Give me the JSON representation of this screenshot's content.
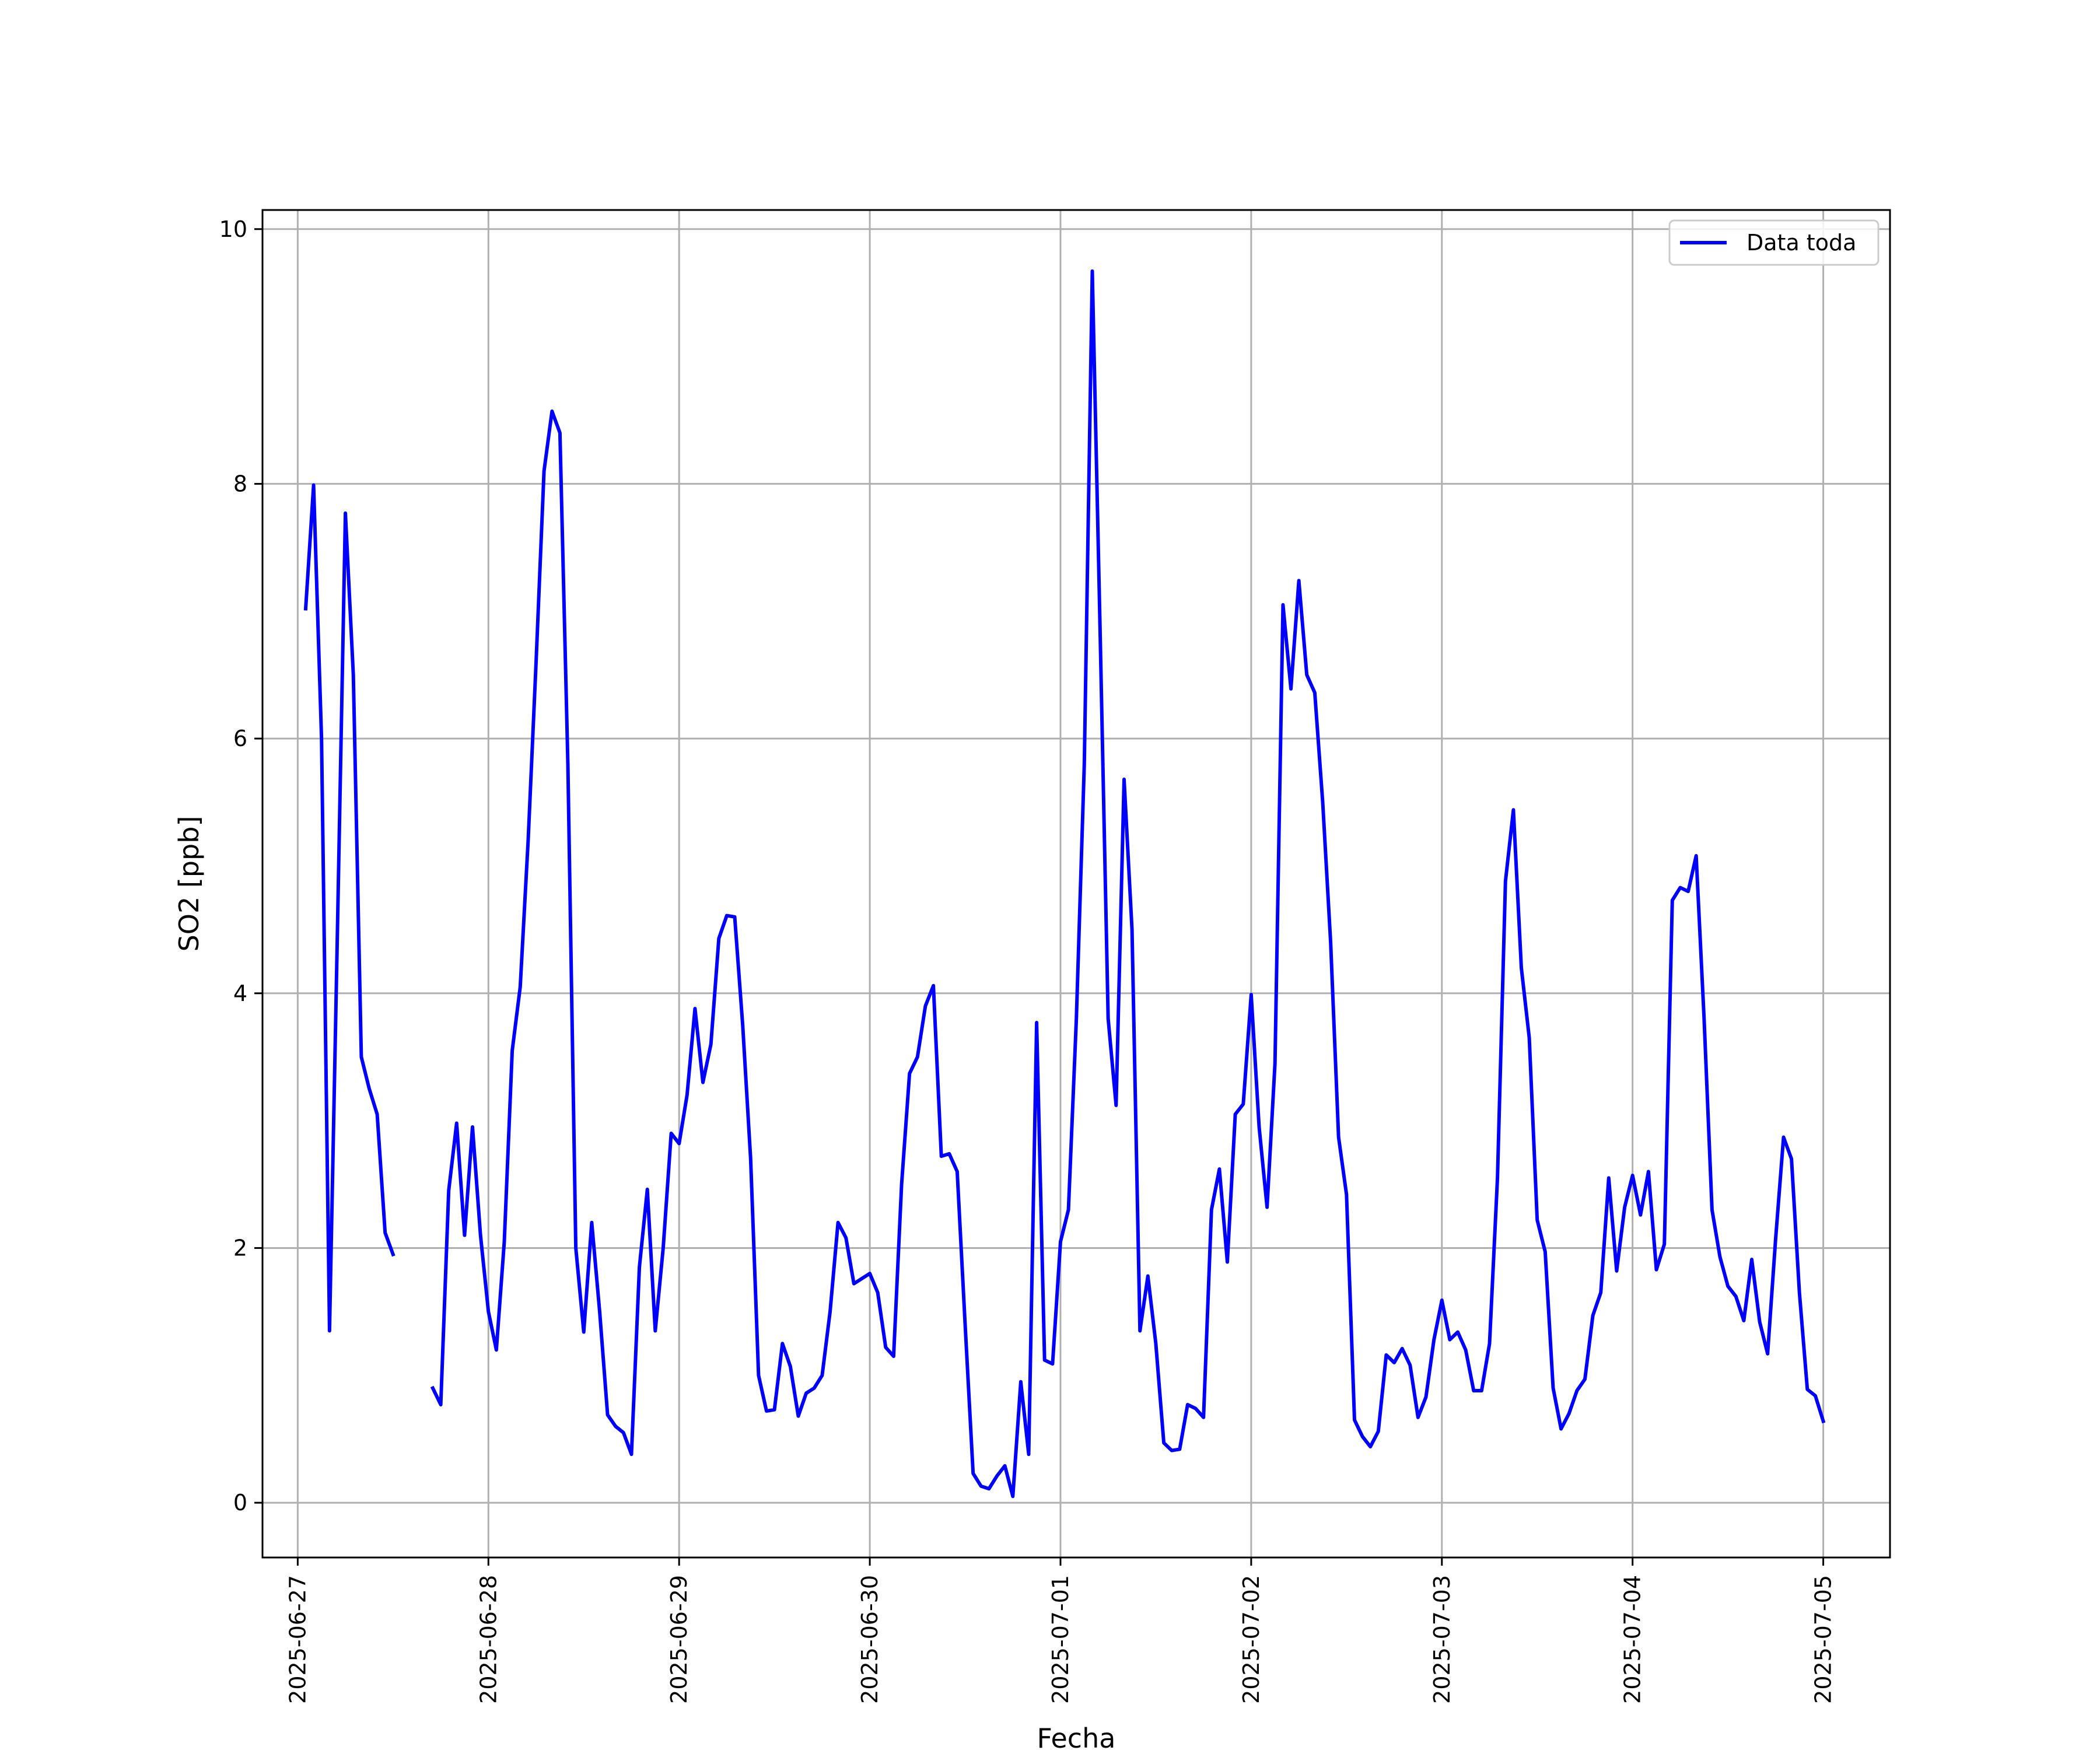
{
  "chart_data": {
    "type": "line",
    "xlabel": "Fecha",
    "ylabel": "SO2 [ppb]",
    "x_ticks": [
      "2025-06-27",
      "2025-06-28",
      "2025-06-29",
      "2025-06-30",
      "2025-07-01",
      "2025-07-02",
      "2025-07-03",
      "2025-07-04",
      "2025-07-05"
    ],
    "y_ticks": [
      0,
      2,
      4,
      6,
      8,
      10
    ],
    "xlim": [
      "2025-06-26T19:34",
      "2025-07-05T08:24"
    ],
    "ylim": [
      -0.43,
      10.15
    ],
    "grid": true,
    "legend": "upper-right",
    "colors": {
      "series": "#0000ff",
      "grid": "#b0b0b0"
    },
    "series": [
      {
        "name": "Data toda",
        "segments": [
          [
            [
              "2025-06-27T01:00",
              7.02
            ],
            [
              "2025-06-27T02:00",
              7.99
            ],
            [
              "2025-06-27T03:00",
              6.0
            ],
            [
              "2025-06-27T04:00",
              1.35
            ],
            [
              "2025-06-27T05:00",
              4.5
            ],
            [
              "2025-06-27T06:00",
              7.77
            ],
            [
              "2025-06-27T07:00",
              6.5
            ],
            [
              "2025-06-27T08:00",
              3.5
            ],
            [
              "2025-06-27T09:00",
              3.25
            ],
            [
              "2025-06-27T10:00",
              3.05
            ],
            [
              "2025-06-27T11:00",
              2.12
            ],
            [
              "2025-06-27T12:00",
              1.95
            ]
          ],
          [
            [
              "2025-06-27T17:00",
              0.9
            ],
            [
              "2025-06-27T18:00",
              0.77
            ],
            [
              "2025-06-27T19:00",
              2.45
            ],
            [
              "2025-06-27T20:00",
              2.98
            ],
            [
              "2025-06-27T21:00",
              2.1
            ],
            [
              "2025-06-27T22:00",
              2.95
            ],
            [
              "2025-06-27T23:00",
              2.1
            ],
            [
              "2025-06-28T00:00",
              1.5
            ],
            [
              "2025-06-28T01:00",
              1.2
            ],
            [
              "2025-06-28T02:00",
              2.05
            ],
            [
              "2025-06-28T03:00",
              3.55
            ],
            [
              "2025-06-28T04:00",
              4.05
            ],
            [
              "2025-06-28T05:00",
              5.2
            ],
            [
              "2025-06-28T06:00",
              6.6
            ],
            [
              "2025-06-28T07:00",
              8.1
            ],
            [
              "2025-06-28T08:00",
              8.57
            ],
            [
              "2025-06-28T09:00",
              8.4
            ],
            [
              "2025-06-28T10:00",
              5.8
            ],
            [
              "2025-06-28T11:00",
              2.0
            ],
            [
              "2025-06-28T12:00",
              1.34
            ],
            [
              "2025-06-28T13:00",
              2.2
            ],
            [
              "2025-06-28T14:00",
              1.5
            ],
            [
              "2025-06-28T15:00",
              0.69
            ],
            [
              "2025-06-28T16:00",
              0.6
            ],
            [
              "2025-06-28T17:00",
              0.55
            ],
            [
              "2025-06-28T18:00",
              0.38
            ],
            [
              "2025-06-28T19:00",
              1.85
            ],
            [
              "2025-06-28T20:00",
              2.46
            ],
            [
              "2025-06-28T21:00",
              1.35
            ],
            [
              "2025-06-28T22:00",
              2.0
            ],
            [
              "2025-06-28T23:00",
              2.9
            ],
            [
              "2025-06-29T00:00",
              2.82
            ],
            [
              "2025-06-29T01:00",
              3.2
            ],
            [
              "2025-06-29T02:00",
              3.88
            ],
            [
              "2025-06-29T03:00",
              3.3
            ],
            [
              "2025-06-29T04:00",
              3.6
            ],
            [
              "2025-06-29T05:00",
              4.43
            ],
            [
              "2025-06-29T06:00",
              4.61
            ],
            [
              "2025-06-29T07:00",
              4.6
            ],
            [
              "2025-06-29T08:00",
              3.75
            ],
            [
              "2025-06-29T09:00",
              2.7
            ],
            [
              "2025-06-29T10:00",
              1.0
            ],
            [
              "2025-06-29T11:00",
              0.72
            ],
            [
              "2025-06-29T12:00",
              0.73
            ],
            [
              "2025-06-29T13:00",
              1.25
            ],
            [
              "2025-06-29T14:00",
              1.07
            ],
            [
              "2025-06-29T15:00",
              0.68
            ],
            [
              "2025-06-29T16:00",
              0.86
            ],
            [
              "2025-06-29T17:00",
              0.9
            ],
            [
              "2025-06-29T18:00",
              1.0
            ],
            [
              "2025-06-29T19:00",
              1.5
            ],
            [
              "2025-06-29T20:00",
              2.2
            ],
            [
              "2025-06-29T21:00",
              2.08
            ],
            [
              "2025-06-29T22:00",
              1.72
            ],
            [
              "2025-06-29T23:00",
              1.76
            ],
            [
              "2025-06-30T00:00",
              1.8
            ],
            [
              "2025-06-30T01:00",
              1.65
            ],
            [
              "2025-06-30T02:00",
              1.22
            ],
            [
              "2025-06-30T03:00",
              1.15
            ],
            [
              "2025-06-30T04:00",
              2.5
            ],
            [
              "2025-06-30T05:00",
              3.37
            ],
            [
              "2025-06-30T06:00",
              3.5
            ],
            [
              "2025-06-30T07:00",
              3.9
            ],
            [
              "2025-06-30T08:00",
              4.06
            ],
            [
              "2025-06-30T09:00",
              2.72
            ],
            [
              "2025-06-30T10:00",
              2.74
            ],
            [
              "2025-06-30T11:00",
              2.6
            ],
            [
              "2025-06-30T12:00",
              1.4
            ],
            [
              "2025-06-30T13:00",
              0.23
            ],
            [
              "2025-06-30T14:00",
              0.13
            ],
            [
              "2025-06-30T15:00",
              0.11
            ],
            [
              "2025-06-30T16:00",
              0.21
            ],
            [
              "2025-06-30T17:00",
              0.29
            ],
            [
              "2025-06-30T18:00",
              0.05
            ],
            [
              "2025-06-30T19:00",
              0.95
            ],
            [
              "2025-06-30T20:00",
              0.38
            ],
            [
              "2025-06-30T21:00",
              3.77
            ],
            [
              "2025-06-30T22:00",
              1.12
            ],
            [
              "2025-06-30T23:00",
              1.09
            ],
            [
              "2025-07-01T00:00",
              2.05
            ],
            [
              "2025-07-01T01:00",
              2.3
            ],
            [
              "2025-07-01T02:00",
              3.8
            ],
            [
              "2025-07-01T03:00",
              5.8
            ],
            [
              "2025-07-01T04:00",
              9.67
            ],
            [
              "2025-07-01T05:00",
              6.8
            ],
            [
              "2025-07-01T06:00",
              3.8
            ],
            [
              "2025-07-01T07:00",
              3.12
            ],
            [
              "2025-07-01T08:00",
              5.68
            ],
            [
              "2025-07-01T09:00",
              4.5
            ],
            [
              "2025-07-01T10:00",
              1.35
            ],
            [
              "2025-07-01T11:00",
              1.78
            ],
            [
              "2025-07-01T12:00",
              1.25
            ],
            [
              "2025-07-01T13:00",
              0.47
            ],
            [
              "2025-07-01T14:00",
              0.41
            ],
            [
              "2025-07-01T15:00",
              0.42
            ],
            [
              "2025-07-01T16:00",
              0.77
            ],
            [
              "2025-07-01T17:00",
              0.74
            ],
            [
              "2025-07-01T18:00",
              0.67
            ],
            [
              "2025-07-01T19:00",
              2.3
            ],
            [
              "2025-07-01T20:00",
              2.62
            ],
            [
              "2025-07-01T21:00",
              1.89
            ],
            [
              "2025-07-01T22:00",
              3.05
            ],
            [
              "2025-07-01T23:00",
              3.13
            ],
            [
              "2025-07-02T00:00",
              3.99
            ],
            [
              "2025-07-02T01:00",
              2.95
            ],
            [
              "2025-07-02T02:00",
              2.32
            ],
            [
              "2025-07-02T03:00",
              3.45
            ],
            [
              "2025-07-02T04:00",
              7.05
            ],
            [
              "2025-07-02T05:00",
              6.39
            ],
            [
              "2025-07-02T06:00",
              7.24
            ],
            [
              "2025-07-02T07:00",
              6.5
            ],
            [
              "2025-07-02T08:00",
              6.36
            ],
            [
              "2025-07-02T09:00",
              5.5
            ],
            [
              "2025-07-02T10:00",
              4.4
            ],
            [
              "2025-07-02T11:00",
              2.87
            ],
            [
              "2025-07-02T12:00",
              2.42
            ],
            [
              "2025-07-02T13:00",
              0.65
            ],
            [
              "2025-07-02T14:00",
              0.52
            ],
            [
              "2025-07-02T15:00",
              0.44
            ],
            [
              "2025-07-02T16:00",
              0.56
            ],
            [
              "2025-07-02T17:00",
              1.16
            ],
            [
              "2025-07-02T18:00",
              1.1
            ],
            [
              "2025-07-02T19:00",
              1.21
            ],
            [
              "2025-07-02T20:00",
              1.08
            ],
            [
              "2025-07-02T21:00",
              0.67
            ],
            [
              "2025-07-02T22:00",
              0.83
            ],
            [
              "2025-07-02T23:00",
              1.28
            ],
            [
              "2025-07-03T00:00",
              1.59
            ],
            [
              "2025-07-03T01:00",
              1.28
            ],
            [
              "2025-07-03T02:00",
              1.34
            ],
            [
              "2025-07-03T03:00",
              1.2
            ],
            [
              "2025-07-03T04:00",
              0.88
            ],
            [
              "2025-07-03T05:00",
              0.88
            ],
            [
              "2025-07-03T06:00",
              1.25
            ],
            [
              "2025-07-03T07:00",
              2.55
            ],
            [
              "2025-07-03T08:00",
              4.88
            ],
            [
              "2025-07-03T09:00",
              5.44
            ],
            [
              "2025-07-03T10:00",
              4.2
            ],
            [
              "2025-07-03T11:00",
              3.65
            ],
            [
              "2025-07-03T12:00",
              2.22
            ],
            [
              "2025-07-03T13:00",
              1.97
            ],
            [
              "2025-07-03T14:00",
              0.9
            ],
            [
              "2025-07-03T15:00",
              0.58
            ],
            [
              "2025-07-03T16:00",
              0.7
            ],
            [
              "2025-07-03T17:00",
              0.88
            ],
            [
              "2025-07-03T18:00",
              0.97
            ],
            [
              "2025-07-03T19:00",
              1.47
            ],
            [
              "2025-07-03T20:00",
              1.65
            ],
            [
              "2025-07-03T21:00",
              2.55
            ],
            [
              "2025-07-03T22:00",
              1.82
            ],
            [
              "2025-07-03T23:00",
              2.32
            ],
            [
              "2025-07-04T00:00",
              2.57
            ],
            [
              "2025-07-04T01:00",
              2.26
            ],
            [
              "2025-07-04T02:00",
              2.6
            ],
            [
              "2025-07-04T03:00",
              1.83
            ],
            [
              "2025-07-04T04:00",
              2.03
            ],
            [
              "2025-07-04T05:00",
              4.73
            ],
            [
              "2025-07-04T06:00",
              4.83
            ],
            [
              "2025-07-04T07:00",
              4.8
            ],
            [
              "2025-07-04T08:00",
              5.08
            ],
            [
              "2025-07-04T09:00",
              3.8
            ],
            [
              "2025-07-04T10:00",
              2.3
            ],
            [
              "2025-07-04T11:00",
              1.93
            ],
            [
              "2025-07-04T12:00",
              1.7
            ],
            [
              "2025-07-04T13:00",
              1.62
            ],
            [
              "2025-07-04T14:00",
              1.43
            ],
            [
              "2025-07-04T15:00",
              1.91
            ],
            [
              "2025-07-04T16:00",
              1.42
            ],
            [
              "2025-07-04T17:00",
              1.17
            ],
            [
              "2025-07-04T18:00",
              2.07
            ],
            [
              "2025-07-04T19:00",
              2.87
            ],
            [
              "2025-07-04T20:00",
              2.7
            ],
            [
              "2025-07-04T21:00",
              1.65
            ],
            [
              "2025-07-04T22:00",
              0.89
            ],
            [
              "2025-07-04T23:00",
              0.84
            ],
            [
              "2025-07-05T00:00",
              0.64
            ]
          ]
        ]
      }
    ]
  }
}
